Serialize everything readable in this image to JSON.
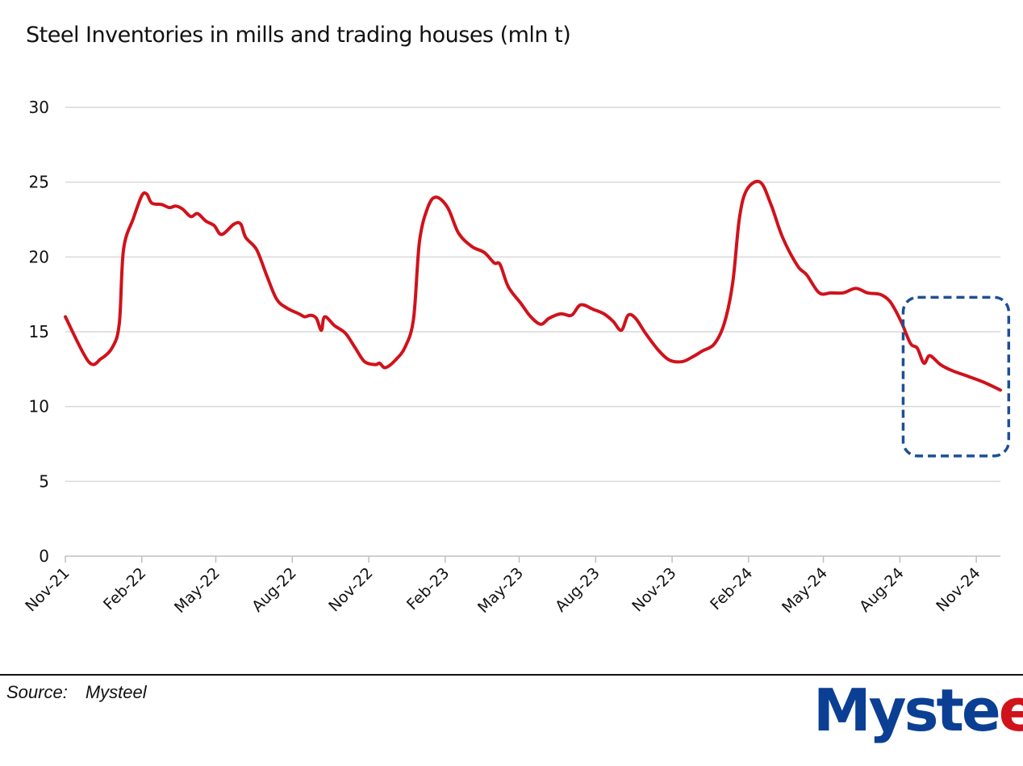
{
  "chart_data": {
    "type": "line",
    "title": "Steel Inventories in mills and trading houses (mln t)",
    "xlabel": "",
    "ylabel": "",
    "ylim": [
      0,
      30
    ],
    "yticks": [
      0,
      5,
      10,
      15,
      20,
      25,
      30
    ],
    "xlim": [
      "2021-11-01",
      "2024-11-30"
    ],
    "xticks": [
      {
        "label": "Nov-21",
        "date": "2021-11-01"
      },
      {
        "label": "Feb-22",
        "date": "2022-02-01"
      },
      {
        "label": "May-22",
        "date": "2022-05-01"
      },
      {
        "label": "Aug-22",
        "date": "2022-08-01"
      },
      {
        "label": "Nov-22",
        "date": "2022-11-01"
      },
      {
        "label": "Feb-23",
        "date": "2023-02-01"
      },
      {
        "label": "May-23",
        "date": "2023-05-01"
      },
      {
        "label": "Aug-23",
        "date": "2023-08-01"
      },
      {
        "label": "Nov-23",
        "date": "2023-11-01"
      },
      {
        "label": "Feb-24",
        "date": "2024-02-01"
      },
      {
        "label": "May-24",
        "date": "2024-05-01"
      },
      {
        "label": "Aug-24",
        "date": "2024-08-01"
      },
      {
        "label": "Nov-24",
        "date": "2024-11-01"
      }
    ],
    "grid": true,
    "legend": "none",
    "series": [
      {
        "color": "#d0121b",
        "points": [
          [
            "2021-11-01",
            16.0
          ],
          [
            "2021-11-29",
            13.0
          ],
          [
            "2021-12-14",
            13.2
          ],
          [
            "2021-12-28",
            14.0
          ],
          [
            "2022-01-05",
            15.6
          ],
          [
            "2022-01-10",
            20.5
          ],
          [
            "2022-01-22",
            22.6
          ],
          [
            "2022-02-01",
            24.1
          ],
          [
            "2022-02-07",
            24.2
          ],
          [
            "2022-02-13",
            23.6
          ],
          [
            "2022-02-25",
            23.5
          ],
          [
            "2022-03-06",
            23.3
          ],
          [
            "2022-03-14",
            23.4
          ],
          [
            "2022-03-22",
            23.2
          ],
          [
            "2022-04-01",
            22.7
          ],
          [
            "2022-04-09",
            22.9
          ],
          [
            "2022-04-19",
            22.4
          ],
          [
            "2022-04-29",
            22.1
          ],
          [
            "2022-05-08",
            21.5
          ],
          [
            "2022-05-23",
            22.2
          ],
          [
            "2022-05-31",
            22.2
          ],
          [
            "2022-06-06",
            21.3
          ],
          [
            "2022-06-19",
            20.5
          ],
          [
            "2022-07-01",
            18.8
          ],
          [
            "2022-07-13",
            17.2
          ],
          [
            "2022-07-25",
            16.6
          ],
          [
            "2022-08-09",
            16.2
          ],
          [
            "2022-08-16",
            16.0
          ],
          [
            "2022-08-23",
            16.1
          ],
          [
            "2022-08-30",
            15.9
          ],
          [
            "2022-09-05",
            15.1
          ],
          [
            "2022-09-09",
            16.0
          ],
          [
            "2022-09-21",
            15.4
          ],
          [
            "2022-10-04",
            14.9
          ],
          [
            "2022-10-16",
            13.9
          ],
          [
            "2022-10-27",
            13.0
          ],
          [
            "2022-11-09",
            12.8
          ],
          [
            "2022-11-14",
            12.9
          ],
          [
            "2022-11-21",
            12.6
          ],
          [
            "2022-12-03",
            13.1
          ],
          [
            "2022-12-15",
            14.0
          ],
          [
            "2022-12-25",
            15.9
          ],
          [
            "2023-01-01",
            21.0
          ],
          [
            "2023-01-11",
            23.3
          ],
          [
            "2023-01-21",
            24.0
          ],
          [
            "2023-02-04",
            23.3
          ],
          [
            "2023-02-17",
            21.6
          ],
          [
            "2023-03-05",
            20.7
          ],
          [
            "2023-03-20",
            20.3
          ],
          [
            "2023-04-01",
            19.6
          ],
          [
            "2023-04-08",
            19.5
          ],
          [
            "2023-04-18",
            18.0
          ],
          [
            "2023-05-03",
            16.9
          ],
          [
            "2023-05-15",
            16.0
          ],
          [
            "2023-05-27",
            15.5
          ],
          [
            "2023-06-06",
            15.9
          ],
          [
            "2023-06-20",
            16.2
          ],
          [
            "2023-07-03",
            16.1
          ],
          [
            "2023-07-14",
            16.8
          ],
          [
            "2023-07-29",
            16.5
          ],
          [
            "2023-08-11",
            16.2
          ],
          [
            "2023-08-22",
            15.7
          ],
          [
            "2023-09-01",
            15.1
          ],
          [
            "2023-09-09",
            16.1
          ],
          [
            "2023-09-18",
            15.9
          ],
          [
            "2023-09-30",
            14.9
          ],
          [
            "2023-10-15",
            13.8
          ],
          [
            "2023-10-29",
            13.1
          ],
          [
            "2023-11-13",
            13.0
          ],
          [
            "2023-11-25",
            13.3
          ],
          [
            "2023-12-07",
            13.7
          ],
          [
            "2023-12-22",
            14.2
          ],
          [
            "2024-01-03",
            15.6
          ],
          [
            "2024-01-13",
            18.3
          ],
          [
            "2024-01-21",
            22.6
          ],
          [
            "2024-01-30",
            24.5
          ],
          [
            "2024-02-15",
            25.0
          ],
          [
            "2024-02-28",
            23.5
          ],
          [
            "2024-03-13",
            21.3
          ],
          [
            "2024-03-31",
            19.4
          ],
          [
            "2024-04-11",
            18.8
          ],
          [
            "2024-04-26",
            17.6
          ],
          [
            "2024-05-10",
            17.6
          ],
          [
            "2024-05-25",
            17.6
          ],
          [
            "2024-06-09",
            17.9
          ],
          [
            "2024-06-23",
            17.6
          ],
          [
            "2024-07-08",
            17.5
          ],
          [
            "2024-07-19",
            17.1
          ],
          [
            "2024-07-27",
            16.4
          ],
          [
            "2024-08-04",
            15.5
          ],
          [
            "2024-08-14",
            14.2
          ],
          [
            "2024-08-22",
            13.9
          ],
          [
            "2024-08-30",
            12.9
          ],
          [
            "2024-09-06",
            13.4
          ],
          [
            "2024-09-19",
            12.8
          ],
          [
            "2024-10-03",
            12.4
          ],
          [
            "2024-10-23",
            12.0
          ],
          [
            "2024-11-11",
            11.6
          ],
          [
            "2024-11-30",
            11.1
          ]
        ]
      }
    ],
    "annotations": [
      {
        "type": "dashed-rounded-box",
        "color": "#1f4e96",
        "x_range": [
          "2024-08-05",
          "2024-12-10"
        ],
        "y_range": [
          6.7,
          17.3
        ]
      }
    ]
  },
  "footer": {
    "source_label": "Source:",
    "source_value": "Mysteel"
  },
  "logo": {
    "text": "Mysteel",
    "color": "#0b3f94",
    "accent": "#d0121b"
  }
}
